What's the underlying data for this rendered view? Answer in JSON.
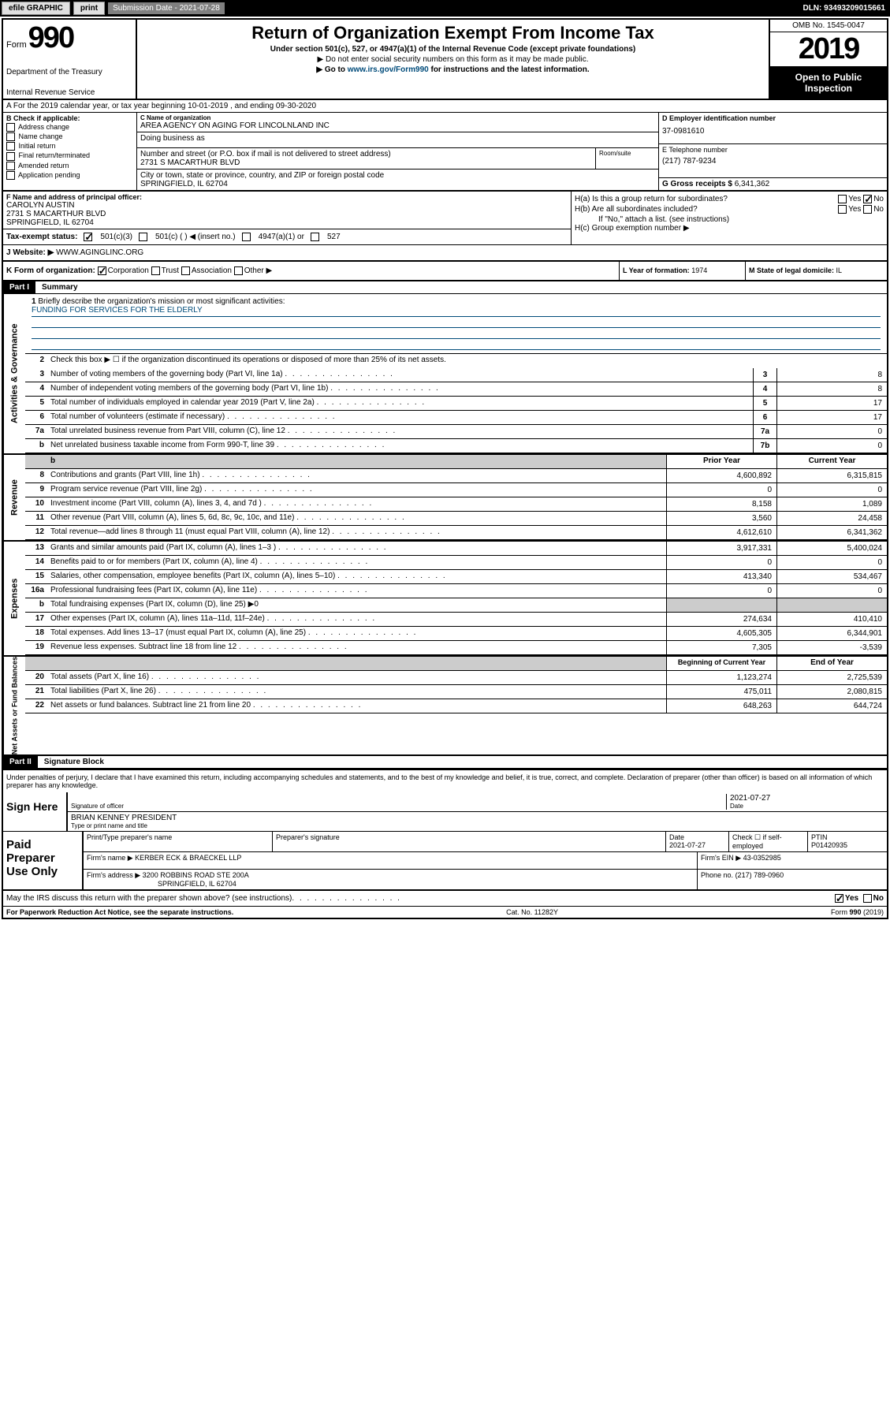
{
  "topbar": {
    "efile": "efile GRAPHIC",
    "print": "print",
    "submission": "Submission Date - 2021-07-28",
    "dln": "DLN: 93493209015661"
  },
  "header": {
    "form_word": "Form",
    "form_num": "990",
    "title": "Return of Organization Exempt From Income Tax",
    "sub1": "Under section 501(c), 527, or 4947(a)(1) of the Internal Revenue Code (except private foundations)",
    "sub2": "▶ Do not enter social security numbers on this form as it may be made public.",
    "sub3_pre": "▶ Go to ",
    "sub3_link": "www.irs.gov/Form990",
    "sub3_post": " for instructions and the latest information.",
    "dept1": "Department of the Treasury",
    "dept2": "Internal Revenue Service",
    "omb": "OMB No. 1545-0047",
    "year": "2019",
    "open": "Open to Public Inspection"
  },
  "sectionA": "A For the 2019 calendar year, or tax year beginning 10-01-2019      , and ending 09-30-2020",
  "boxB": {
    "title": "B Check if applicable:",
    "opts": [
      "Address change",
      "Name change",
      "Initial return",
      "Final return/terminated",
      "Amended return",
      "Application pending"
    ]
  },
  "boxC": {
    "name_lbl": "C Name of organization",
    "name": "AREA AGENCY ON AGING FOR LINCOLNLAND INC",
    "dba_lbl": "Doing business as",
    "addr_lbl": "Number and street (or P.O. box if mail is not delivered to street address)",
    "addr": "2731 S MACARTHUR BLVD",
    "suite_lbl": "Room/suite",
    "city_lbl": "City or town, state or province, country, and ZIP or foreign postal code",
    "city": "SPRINGFIELD, IL  62704"
  },
  "boxD": {
    "lbl": "D Employer identification number",
    "val": "37-0981610"
  },
  "boxE": {
    "lbl": "E Telephone number",
    "val": "(217) 787-9234"
  },
  "boxG": {
    "lbl": "G Gross receipts $",
    "val": "6,341,362"
  },
  "boxF": {
    "lbl": "F Name and address of principal officer:",
    "name": "CAROLYN AUSTIN",
    "addr1": "2731 S MACARTHUR BLVD",
    "addr2": "SPRINGFIELD, IL  62704"
  },
  "boxH": {
    "ha": "H(a)  Is this a group return for subordinates?",
    "hb": "H(b)  Are all subordinates included?",
    "hb_note": "If \"No,\" attach a list. (see instructions)",
    "hc": "H(c)  Group exemption number ▶",
    "yes": "Yes",
    "no": "No"
  },
  "boxI": {
    "lbl": "Tax-exempt status:",
    "o1": "501(c)(3)",
    "o2": "501(c) (   ) ◀ (insert no.)",
    "o3": "4947(a)(1) or",
    "o4": "527"
  },
  "boxJ": {
    "lbl": "J Website: ▶",
    "val": "WWW.AGINGLINC.ORG"
  },
  "boxK": {
    "lbl": "K Form of organization:",
    "o1": "Corporation",
    "o2": "Trust",
    "o3": "Association",
    "o4": "Other ▶"
  },
  "boxL": {
    "lbl": "L Year of formation:",
    "val": "1974"
  },
  "boxM": {
    "lbl": "M State of legal domicile:",
    "val": "IL"
  },
  "part1": {
    "label": "Part I",
    "title": "Summary"
  },
  "summary": {
    "q1": "Briefly describe the organization's mission or most significant activities:",
    "mission": "FUNDING FOR SERVICES FOR THE ELDERLY",
    "q2": "Check this box ▶ ☐  if the organization discontinued its operations or disposed of more than 25% of its net assets.",
    "lines_gov": [
      {
        "n": "3",
        "t": "Number of voting members of the governing body (Part VI, line 1a)",
        "c": "3",
        "v": "8"
      },
      {
        "n": "4",
        "t": "Number of independent voting members of the governing body (Part VI, line 1b)",
        "c": "4",
        "v": "8"
      },
      {
        "n": "5",
        "t": "Total number of individuals employed in calendar year 2019 (Part V, line 2a)",
        "c": "5",
        "v": "17"
      },
      {
        "n": "6",
        "t": "Total number of volunteers (estimate if necessary)",
        "c": "6",
        "v": "17"
      },
      {
        "n": "7a",
        "t": "Total unrelated business revenue from Part VIII, column (C), line 12",
        "c": "7a",
        "v": "0"
      },
      {
        "n": "b",
        "t": "Net unrelated business taxable income from Form 990-T, line 39",
        "c": "7b",
        "v": "0"
      }
    ],
    "hdr_prior": "Prior Year",
    "hdr_current": "Current Year",
    "lines_rev": [
      {
        "n": "8",
        "t": "Contributions and grants (Part VIII, line 1h)",
        "p": "4,600,892",
        "c": "6,315,815"
      },
      {
        "n": "9",
        "t": "Program service revenue (Part VIII, line 2g)",
        "p": "0",
        "c": "0"
      },
      {
        "n": "10",
        "t": "Investment income (Part VIII, column (A), lines 3, 4, and 7d )",
        "p": "8,158",
        "c": "1,089"
      },
      {
        "n": "11",
        "t": "Other revenue (Part VIII, column (A), lines 5, 6d, 8c, 9c, 10c, and 11e)",
        "p": "3,560",
        "c": "24,458"
      },
      {
        "n": "12",
        "t": "Total revenue—add lines 8 through 11 (must equal Part VIII, column (A), line 12)",
        "p": "4,612,610",
        "c": "6,341,362"
      }
    ],
    "lines_exp": [
      {
        "n": "13",
        "t": "Grants and similar amounts paid (Part IX, column (A), lines 1–3 )",
        "p": "3,917,331",
        "c": "5,400,024"
      },
      {
        "n": "14",
        "t": "Benefits paid to or for members (Part IX, column (A), line 4)",
        "p": "0",
        "c": "0"
      },
      {
        "n": "15",
        "t": "Salaries, other compensation, employee benefits (Part IX, column (A), lines 5–10)",
        "p": "413,340",
        "c": "534,467"
      },
      {
        "n": "16a",
        "t": "Professional fundraising fees (Part IX, column (A), line 11e)",
        "p": "0",
        "c": "0"
      },
      {
        "n": "b",
        "t": "Total fundraising expenses (Part IX, column (D), line 25) ▶0",
        "p": "",
        "c": "",
        "gray": true
      },
      {
        "n": "17",
        "t": "Other expenses (Part IX, column (A), lines 11a–11d, 11f–24e)",
        "p": "274,634",
        "c": "410,410"
      },
      {
        "n": "18",
        "t": "Total expenses. Add lines 13–17 (must equal Part IX, column (A), line 25)",
        "p": "4,605,305",
        "c": "6,344,901"
      },
      {
        "n": "19",
        "t": "Revenue less expenses. Subtract line 18 from line 12",
        "p": "7,305",
        "c": "-3,539"
      }
    ],
    "hdr_begin": "Beginning of Current Year",
    "hdr_end": "End of Year",
    "lines_net": [
      {
        "n": "20",
        "t": "Total assets (Part X, line 16)",
        "p": "1,123,274",
        "c": "2,725,539"
      },
      {
        "n": "21",
        "t": "Total liabilities (Part X, line 26)",
        "p": "475,011",
        "c": "2,080,815"
      },
      {
        "n": "22",
        "t": "Net assets or fund balances. Subtract line 21 from line 20",
        "p": "648,263",
        "c": "644,724"
      }
    ],
    "vlabels": {
      "gov": "Activities & Governance",
      "rev": "Revenue",
      "exp": "Expenses",
      "net": "Net Assets or Fund Balances"
    }
  },
  "part2": {
    "label": "Part II",
    "title": "Signature Block"
  },
  "perjury": "Under penalties of perjury, I declare that I have examined this return, including accompanying schedules and statements, and to the best of my knowledge and belief, it is true, correct, and complete. Declaration of preparer (other than officer) is based on all information of which preparer has any knowledge.",
  "sign": {
    "label": "Sign Here",
    "sig_lbl": "Signature of officer",
    "date": "2021-07-27",
    "date_lbl": "Date",
    "name": "BRIAN KENNEY PRESIDENT",
    "name_lbl": "Type or print name and title"
  },
  "paid": {
    "label": "Paid Preparer Use Only",
    "h1": "Print/Type preparer's name",
    "h2": "Preparer's signature",
    "h3": "Date",
    "h3v": "2021-07-27",
    "h4": "Check ☐ if self-employed",
    "h5": "PTIN",
    "h5v": "P01420935",
    "firm_lbl": "Firm's name    ▶",
    "firm": "KERBER ECK & BRAECKEL LLP",
    "ein_lbl": "Firm's EIN ▶",
    "ein": "43-0352985",
    "addr_lbl": "Firm's address ▶",
    "addr1": "3200 ROBBINS ROAD STE 200A",
    "addr2": "SPRINGFIELD, IL  62704",
    "phone_lbl": "Phone no.",
    "phone": "(217) 789-0960"
  },
  "discuss": "May the IRS discuss this return with the preparer shown above? (see instructions)",
  "footer": {
    "left": "For Paperwork Reduction Act Notice, see the separate instructions.",
    "mid": "Cat. No. 11282Y",
    "right": "Form 990 (2019)"
  }
}
